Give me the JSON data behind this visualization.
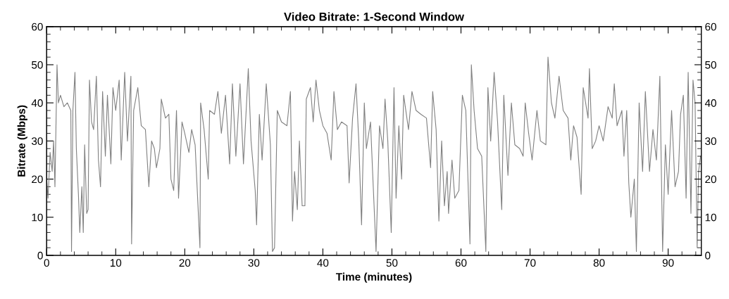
{
  "chart_data": {
    "type": "line",
    "title": "Video Bitrate: 1-Second Window",
    "xlabel": "Time (minutes)",
    "ylabel": "Bitrate (Mbps)",
    "xlim": [
      0,
      94.8
    ],
    "xticks": [
      0,
      10,
      20,
      30,
      40,
      50,
      60,
      70,
      80,
      90
    ],
    "ylim": [
      0,
      60
    ],
    "yticks": [
      0,
      10,
      20,
      30,
      40,
      50,
      60
    ],
    "y2lim": [
      0,
      60
    ],
    "y2ticks": [
      0,
      10,
      20,
      30,
      40,
      50,
      60
    ],
    "grid": false,
    "marker": "none",
    "line_style": "solid",
    "series": [
      {
        "color": "#808080",
        "x": [
          0,
          0.2,
          0.5,
          0.8,
          1.0,
          1.2,
          1.5,
          1.7,
          2,
          2.5,
          3,
          3.5,
          3.6,
          3.8,
          4.1,
          4.3,
          4.6,
          4.8,
          5.1,
          5.3,
          5.5,
          5.8,
          6.0,
          6.2,
          6.5,
          6.8,
          7.2,
          7.5,
          7.8,
          8.1,
          8.5,
          8.8,
          9.3,
          9.6,
          10,
          10.5,
          10.8,
          11.3,
          11.7,
          12.2,
          12.3,
          12.6,
          13.2,
          13.7,
          14.3,
          14.8,
          15.2,
          15.6,
          15.9,
          16.4,
          16.6,
          17.2,
          17.7,
          18,
          18.4,
          18.8,
          19.1,
          19.6,
          20,
          20.6,
          21,
          21.5,
          22.2,
          22.3,
          22.8,
          23.4,
          23.6,
          24.3,
          24.8,
          25.3,
          25.9,
          26.5,
          26.9,
          27.4,
          28,
          28.5,
          29.2,
          29.6,
          30.2,
          30.4,
          30.8,
          31.2,
          31.8,
          32.4,
          32.7,
          33,
          33.4,
          34,
          34.8,
          35.3,
          35.6,
          35.9,
          36.3,
          36.6,
          37,
          37.4,
          37.6,
          38.2,
          38.6,
          39,
          39.5,
          40,
          40.6,
          41.2,
          41.6,
          42.1,
          42.7,
          43.5,
          43.8,
          44.3,
          44.8,
          45.2,
          45.6,
          46,
          46.3,
          46.9,
          47.2,
          47.7,
          48.2,
          48.7,
          49,
          49.4,
          49.9,
          50.3,
          50.6,
          51,
          51.4,
          51.7,
          52.4,
          52.9,
          53.5,
          54.2,
          55,
          55.6,
          55.9,
          56.4,
          56.8,
          57.2,
          57.6,
          58,
          58.2,
          58.7,
          59.1,
          59.7,
          60.2,
          60.7,
          61.3,
          61.5,
          61.9,
          62.4,
          63,
          63.6,
          63.9,
          64.3,
          64.8,
          65.3,
          65.9,
          66.2,
          66.8,
          67.3,
          67.8,
          68.5,
          69,
          69.3,
          69.8,
          70.3,
          71,
          71.5,
          72.3,
          72.6,
          73.1,
          73.6,
          74.2,
          74.8,
          75.5,
          75.9,
          76.3,
          76.8,
          77.4,
          77.7,
          78.4,
          78.6,
          79,
          79.5,
          80,
          80.6,
          81.3,
          81.9,
          82.2,
          82.6,
          83.3,
          83.6,
          84,
          84.3,
          84.6,
          85.1,
          85.4,
          85.8,
          86.3,
          86.7,
          87.3,
          87.8,
          88.3,
          88.8,
          89.2,
          89.6,
          90,
          90.5,
          91,
          91.5,
          91.8,
          92.2,
          92.6,
          92.9,
          93.3,
          93.6,
          93.9,
          94.2,
          94.4,
          94.7
        ],
        "values": [
          20,
          15,
          27,
          22,
          30,
          18,
          50,
          40,
          42,
          39,
          40,
          38,
          1,
          38,
          48,
          28,
          16,
          6,
          18,
          6,
          29,
          11,
          12,
          46,
          35,
          33,
          47,
          25,
          18,
          43,
          26,
          42,
          24,
          44,
          38,
          46,
          25,
          48,
          30,
          47,
          3,
          38,
          44,
          34,
          33,
          18,
          30,
          28,
          23,
          28,
          41,
          36,
          37,
          20,
          17,
          38,
          15,
          35,
          32,
          27,
          33,
          29,
          2,
          40,
          33,
          20,
          38,
          37,
          43,
          32,
          42,
          24,
          45,
          26,
          45,
          24,
          49,
          30,
          17,
          8,
          37,
          25,
          45,
          29,
          1,
          2,
          38,
          35,
          34,
          43,
          9,
          22,
          12,
          30,
          13,
          13,
          41,
          44,
          35,
          46,
          38,
          34,
          32,
          25,
          43,
          33,
          35,
          34,
          19,
          36,
          45,
          30,
          8,
          40,
          28,
          35,
          22,
          1,
          34,
          28,
          41,
          30,
          6,
          44,
          15,
          34,
          20,
          42,
          33,
          43,
          38,
          37,
          36,
          23,
          43,
          33,
          9,
          30,
          13,
          22,
          11,
          25,
          15,
          17,
          42,
          38,
          3,
          50,
          38,
          28,
          26,
          1,
          44,
          30,
          48,
          35,
          12,
          42,
          21,
          40,
          29,
          28,
          26,
          40,
          32,
          25,
          38,
          30,
          29,
          52,
          40,
          36,
          47,
          38,
          36,
          25,
          34,
          31,
          16,
          44,
          36,
          49,
          28,
          30,
          34,
          30,
          39,
          36,
          45,
          34,
          38,
          26,
          38,
          19,
          10,
          20,
          1,
          40,
          22,
          43,
          22,
          33,
          25,
          47,
          1,
          29,
          16,
          38,
          18,
          22,
          37,
          42,
          15,
          48,
          11,
          46,
          40,
          2,
          22,
          26
        ]
      }
    ]
  }
}
